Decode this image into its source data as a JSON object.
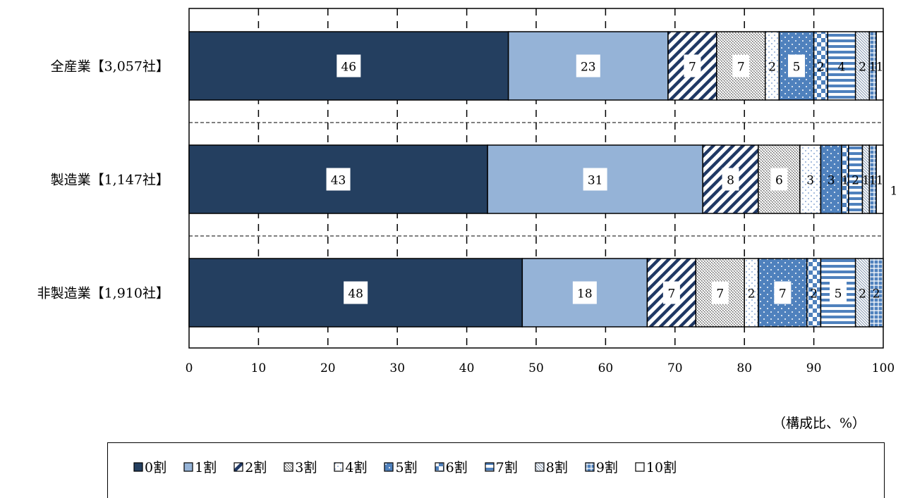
{
  "chart_data": {
    "type": "bar",
    "orientation": "horizontal",
    "stacked": true,
    "categories": [
      "全産業【3,057社】",
      "製造業【1,147社】",
      "非製造業【1,910社】"
    ],
    "series": [
      {
        "name": "0割",
        "color": "#243f60",
        "values": [
          46,
          43,
          48
        ]
      },
      {
        "name": "1割",
        "color": "#95b3d7",
        "values": [
          23,
          31,
          18
        ]
      },
      {
        "name": "2割",
        "color": "#1f3864",
        "values": [
          7,
          8,
          7
        ]
      },
      {
        "name": "3割",
        "color": "#8497b0",
        "values": [
          7,
          6,
          7
        ]
      },
      {
        "name": "4割",
        "color": "#bdd7ee",
        "values": [
          2,
          3,
          2
        ]
      },
      {
        "name": "5割",
        "color": "#4f81bd",
        "values": [
          5,
          3,
          7
        ]
      },
      {
        "name": "6割",
        "color": "#4f81bd",
        "values": [
          2,
          1,
          2
        ]
      },
      {
        "name": "7割",
        "color": "#4f81bd",
        "values": [
          4,
          2,
          5
        ]
      },
      {
        "name": "8割",
        "color": "#8497b0",
        "values": [
          2,
          1,
          2
        ]
      },
      {
        "name": "9割",
        "color": "#4f81bd",
        "values": [
          1,
          1,
          2
        ]
      },
      {
        "name": "10割",
        "color": "#243f60",
        "values": [
          1,
          1,
          0
        ]
      }
    ],
    "xlim": [
      0,
      100
    ],
    "xticks": [
      "0",
      "10",
      "20",
      "30",
      "40",
      "50",
      "60",
      "70",
      "80",
      "90",
      "100"
    ],
    "xlabel": "（構成比、%）",
    "grid": true,
    "legend_position": "bottom",
    "stray_labels": [
      {
        "category": 1,
        "text": "1"
      }
    ]
  },
  "legend": [
    "0割",
    "1割",
    "2割",
    "3割",
    "4割",
    "5割",
    "6割",
    "7割",
    "8割",
    "9割",
    "10割"
  ]
}
